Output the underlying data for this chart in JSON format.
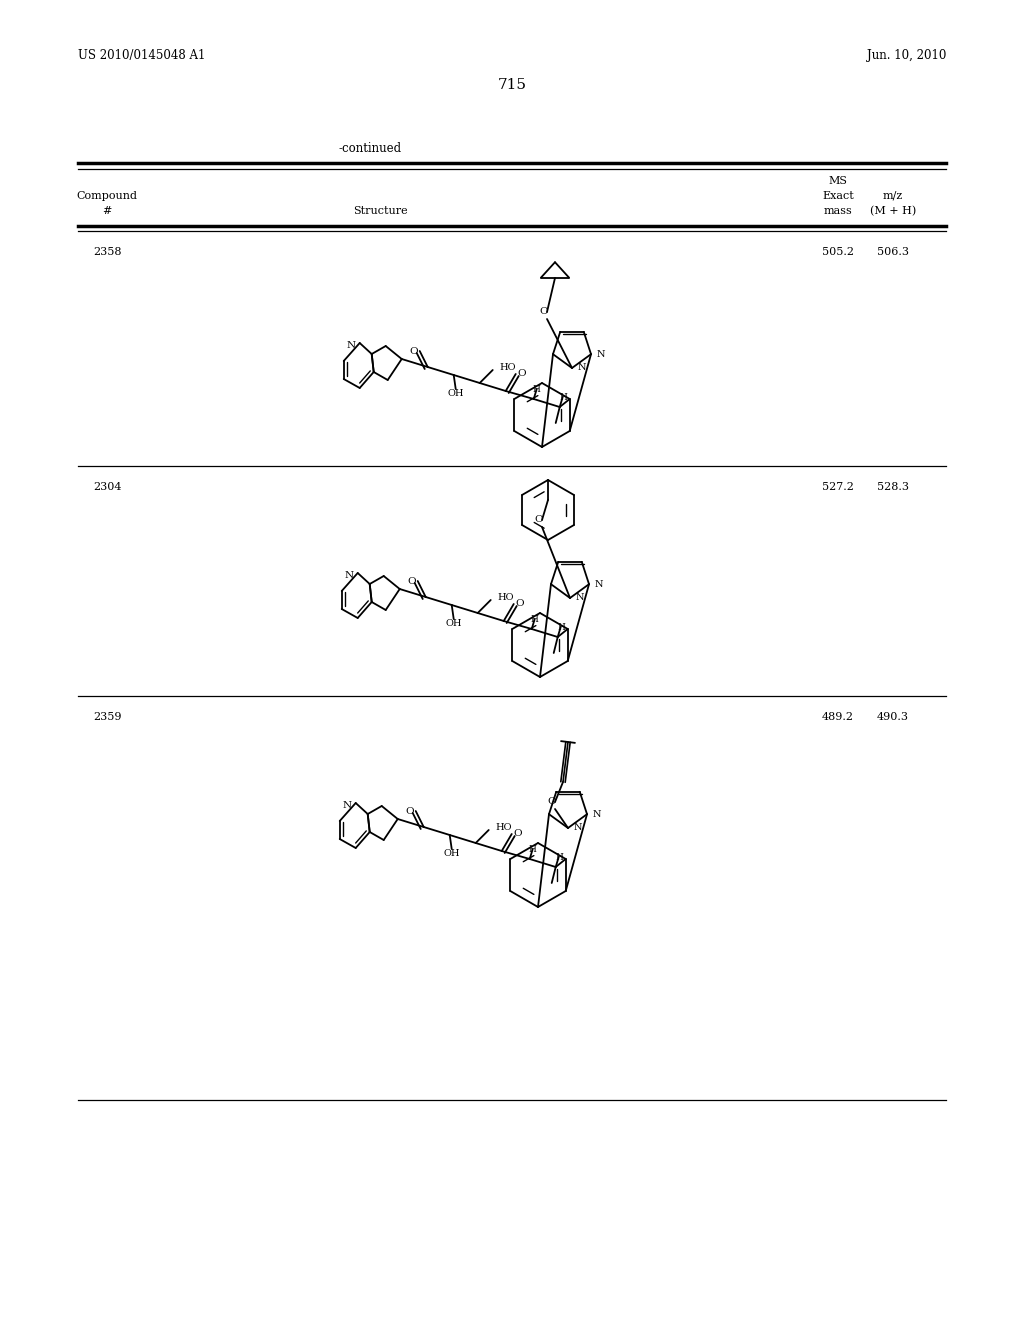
{
  "background_color": "#ffffff",
  "page_number": "715",
  "patent_left": "US 2010/0145048 A1",
  "patent_right": "Jun. 10, 2010",
  "continued_label": "-continued",
  "compounds": [
    {
      "id": "2358",
      "exact_mass": "505.2",
      "ms_mz": "506.3"
    },
    {
      "id": "2304",
      "exact_mass": "527.2",
      "ms_mz": "528.3"
    },
    {
      "id": "2359",
      "exact_mass": "489.2",
      "ms_mz": "490.3"
    }
  ]
}
